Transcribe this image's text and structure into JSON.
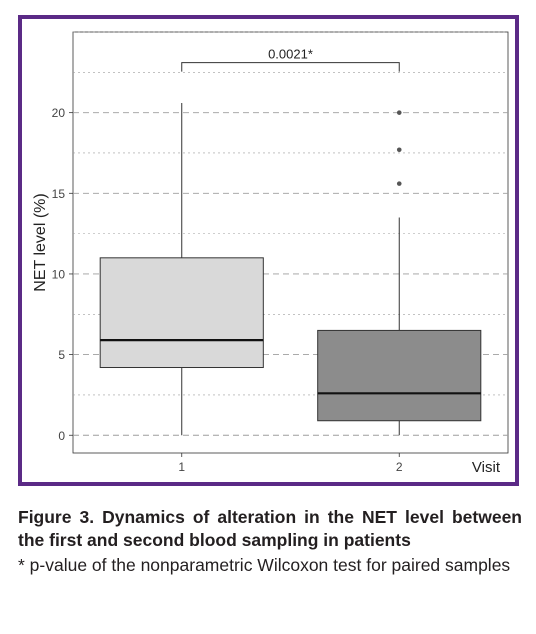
{
  "chart_data": {
    "type": "boxplot",
    "categories": [
      "1",
      "2"
    ],
    "xlabel": "Visit",
    "ylabel": "NET level (%)",
    "ylim": [
      -1.1,
      25
    ],
    "yticks": [
      0,
      5,
      10,
      15,
      20
    ],
    "grid": true,
    "boxes": [
      {
        "category": "1",
        "min": 0,
        "q1": 4.2,
        "median": 5.9,
        "q3": 11.0,
        "max": 20.6,
        "outliers": [],
        "fill": "#d9d9d9"
      },
      {
        "category": "2",
        "min": 0,
        "q1": 0.9,
        "median": 2.6,
        "q3": 6.5,
        "max": 13.5,
        "outliers": [
          15.6,
          17.7,
          20.0
        ],
        "fill": "#8c8c8c"
      }
    ],
    "annotation": {
      "text": "0.0021*",
      "between": [
        "1",
        "2"
      ],
      "y": 23.1
    }
  },
  "caption": {
    "title": "Figure 3. Dynamics of alteration in the NET level between the first and second blood sampling in patients",
    "note": "* p-value of the nonparametric Wilcoxon test for paired samples"
  },
  "colors": {
    "frame": "#5b2a86",
    "gridline": "#9e9e9e",
    "axis": "#333333"
  }
}
